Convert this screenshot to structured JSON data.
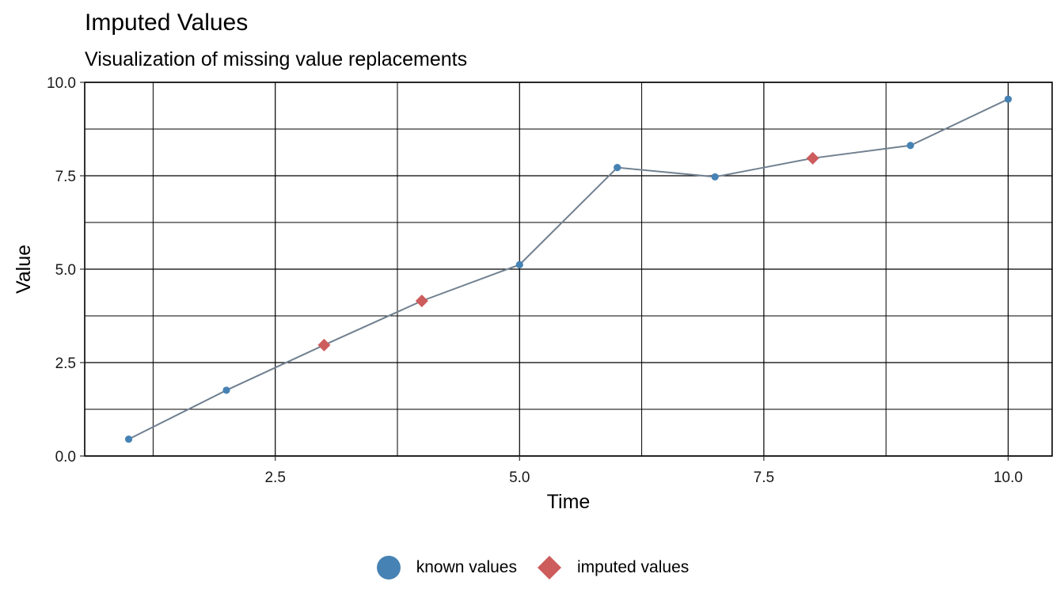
{
  "chart_data": {
    "type": "line",
    "title": "Imputed Values",
    "subtitle": "Visualization of missing value replacements",
    "xlabel": "Time",
    "ylabel": "Value",
    "xlim": [
      0.55,
      10.45
    ],
    "ylim": [
      0.0,
      10.0
    ],
    "x_ticks": [
      2.5,
      5.0,
      7.5,
      10.0
    ],
    "x_tick_labels": [
      "2.5",
      "5.0",
      "7.5",
      "10.0"
    ],
    "y_ticks": [
      0.0,
      2.5,
      5.0,
      7.5,
      10.0
    ],
    "y_tick_labels": [
      "0.0",
      "2.5",
      "5.0",
      "7.5",
      "10.0"
    ],
    "x_minor_grid": [
      1.25,
      3.75,
      6.25,
      8.75
    ],
    "y_minor_grid": [
      1.25,
      3.75,
      6.25,
      8.75
    ],
    "grid": true,
    "legend_position": "bottom",
    "line_color": "#708090",
    "series": [
      {
        "name": "known values",
        "marker": "circle",
        "color": "#4682B4",
        "points": [
          {
            "x": 1,
            "y": 0.45
          },
          {
            "x": 2,
            "y": 1.76
          },
          {
            "x": 5,
            "y": 5.12
          },
          {
            "x": 6,
            "y": 7.72
          },
          {
            "x": 7,
            "y": 7.47
          },
          {
            "x": 9,
            "y": 8.31
          },
          {
            "x": 10,
            "y": 9.55
          }
        ]
      },
      {
        "name": "imputed values",
        "marker": "diamond",
        "color": "#CD5C5C",
        "points": [
          {
            "x": 3,
            "y": 2.97
          },
          {
            "x": 4,
            "y": 4.15
          },
          {
            "x": 8,
            "y": 7.97
          }
        ]
      }
    ],
    "line_order": [
      1,
      2,
      3,
      4,
      5,
      6,
      7,
      8,
      9,
      10
    ]
  }
}
